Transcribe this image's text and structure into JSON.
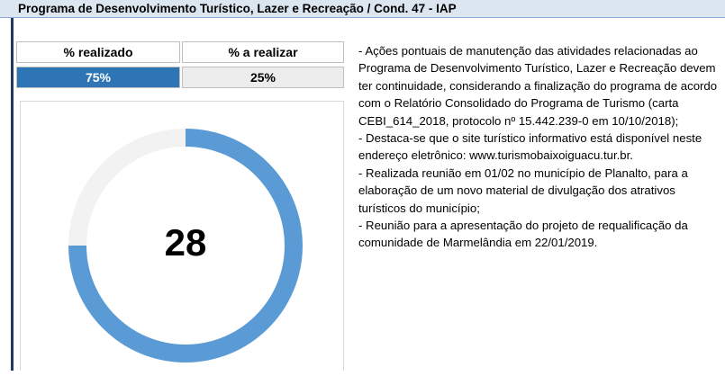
{
  "header": {
    "title": "Programa de Desenvolvimento Turístico, Lazer e Recreação / Cond. 47 - IAP"
  },
  "chart_data": {
    "type": "donut",
    "categories": [
      "% realizado",
      "% a realizar"
    ],
    "values": [
      75,
      25
    ],
    "value_labels": [
      "75%",
      "25%"
    ],
    "colors": [
      "#5b9bd5",
      "#f2f2f2"
    ],
    "center_label": "28"
  },
  "notes": [
    "- Ações pontuais de manutenção das atividades relacionadas ao Programa de Desenvolvimento Turístico, Lazer e Recreação devem ter continuidade, considerando a finalização do programa de acordo com o Relatório Consolidado do Programa de Turismo (carta CEBI_614_2018, protocolo nº 15.442.239-0 em 10/10/2018);",
    "- Destaca-se que o site turístico informativo está disponível neste endereço eletrônico: www.turismobaixoiguacu.tur.br.",
    "- Realizada reunião em 01/02 no município de Planalto, para a elaboração de um novo material de divulgação dos atrativos turísticos do município;",
    "- Reunião para a apresentação do projeto de requalificação da comunidade de Marmelândia em 22/01/2019."
  ]
}
